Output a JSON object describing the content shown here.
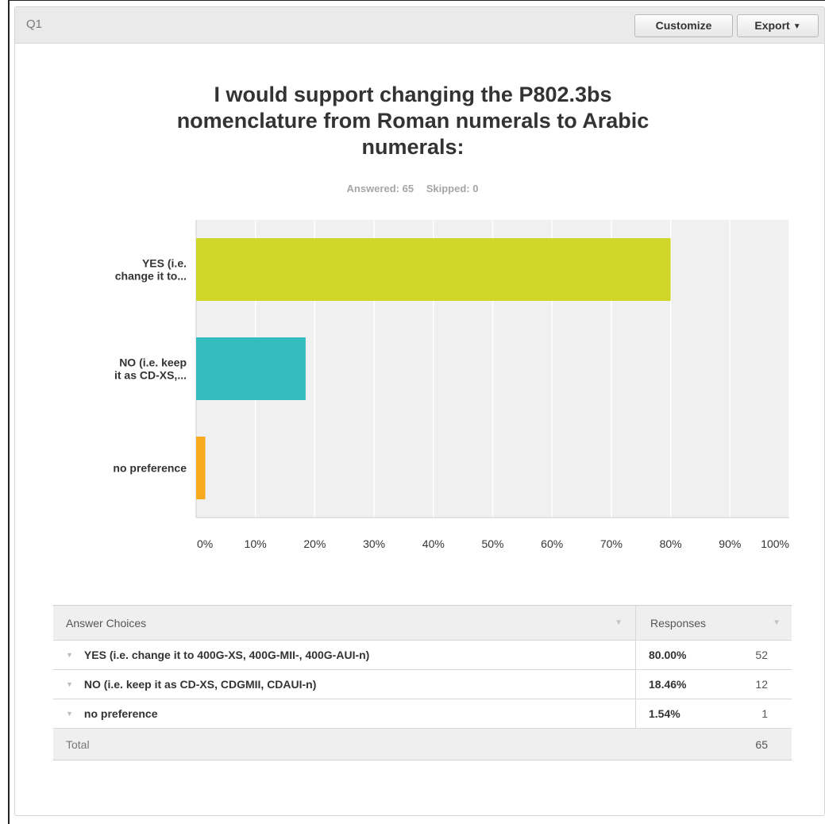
{
  "header": {
    "question_label": "Q1",
    "customize_label": "Customize",
    "export_label": "Export"
  },
  "question": {
    "title": "I would support changing the P802.3bs nomenclature from Roman numerals to Arabic numerals:",
    "answered_label": "Answered: 65",
    "skipped_label": "Skipped: 0"
  },
  "colors": {
    "bar_yes": "#cfd627",
    "bar_no": "#33bdbe",
    "bar_none": "#f6aa1c",
    "plot_bg": "#f0f0f0"
  },
  "chart_data": {
    "type": "bar",
    "orientation": "horizontal",
    "categories": [
      "YES (i.e. change it to...",
      "NO (i.e. keep it as CD-XS,...",
      "no preference"
    ],
    "category_lines": [
      [
        "YES (i.e.",
        "change it to..."
      ],
      [
        "NO (i.e. keep",
        "it as CD-XS,..."
      ],
      [
        "no preference"
      ]
    ],
    "values": [
      80.0,
      18.46,
      1.54
    ],
    "xlim": [
      0,
      100
    ],
    "xticks": [
      "0%",
      "10%",
      "20%",
      "30%",
      "40%",
      "50%",
      "60%",
      "70%",
      "80%",
      "90%",
      "100%"
    ],
    "grid": true
  },
  "table": {
    "header_choice": "Answer Choices",
    "header_responses": "Responses",
    "rows": [
      {
        "choice": "YES (i.e. change it to 400G-XS, 400G-MII-, 400G-AUI-n)",
        "percent": "80.00%",
        "count": "52"
      },
      {
        "choice": "NO (i.e. keep it as CD-XS, CDGMII, CDAUI-n)",
        "percent": "18.46%",
        "count": "12"
      },
      {
        "choice": "no preference",
        "percent": "1.54%",
        "count": "1"
      }
    ],
    "total_label": "Total",
    "total_count": "65"
  }
}
